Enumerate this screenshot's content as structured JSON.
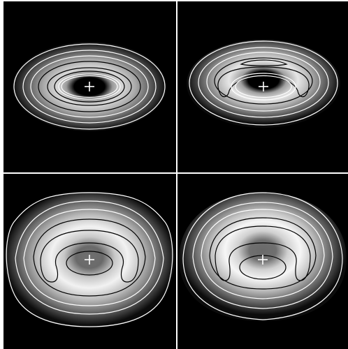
{
  "figure": {
    "background": "#ffffff",
    "panel_background": "#000000",
    "contour_colors": {
      "light": "#ffffff",
      "dark": "#000000"
    },
    "center_marker": "+",
    "panels": [
      {
        "id": "top-left"
      },
      {
        "id": "top-right"
      },
      {
        "id": "bottom-left"
      },
      {
        "id": "bottom-right"
      }
    ]
  }
}
